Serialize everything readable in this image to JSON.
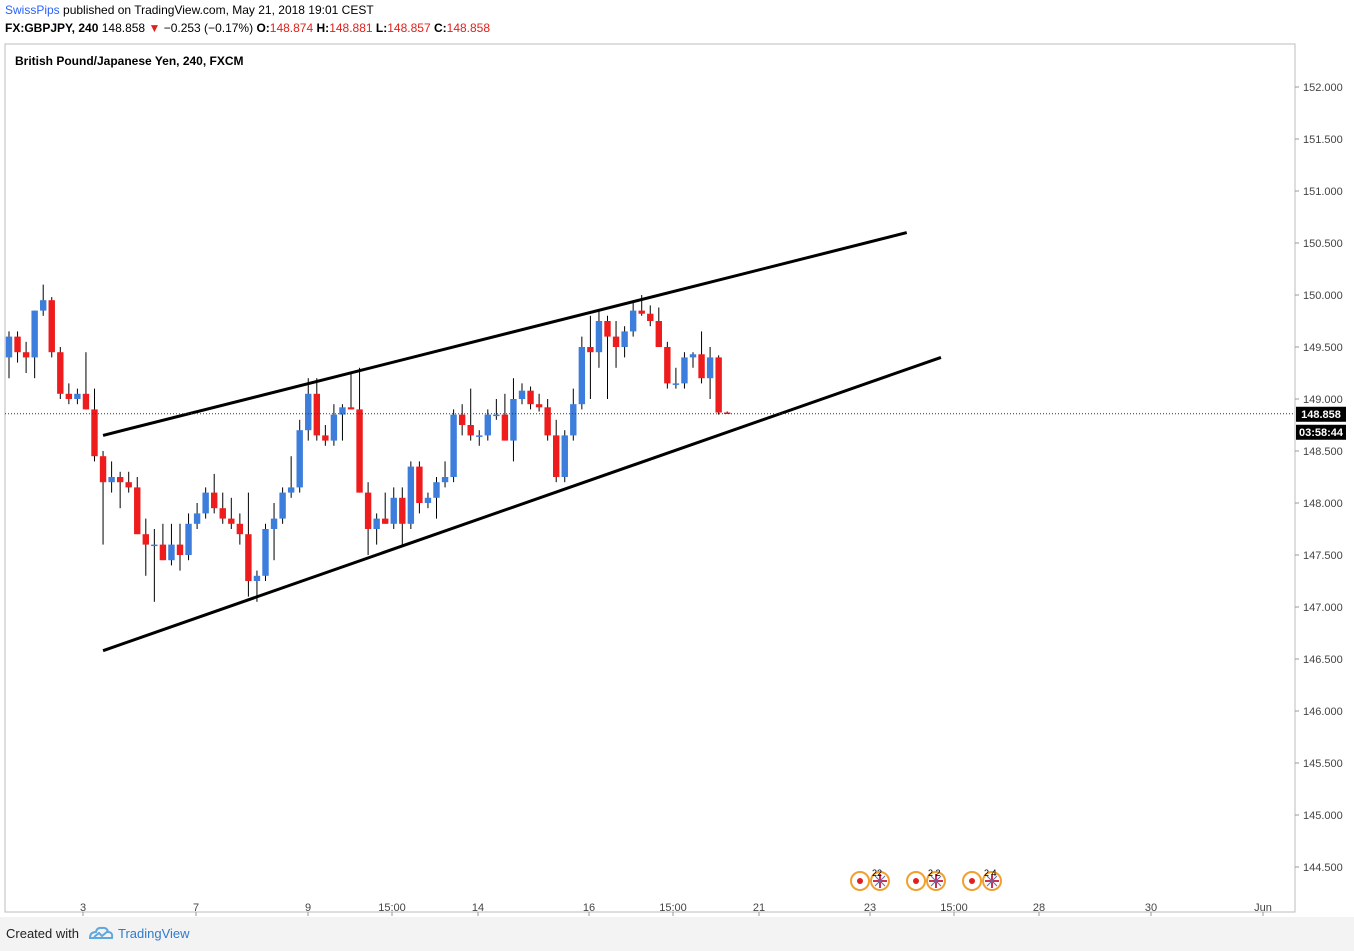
{
  "header": {
    "publisher": "SwissPips",
    "published_text": "published on TradingView.com, May 21, 2018 19:01 CEST",
    "symbol": "FX:GBPJPY, 240",
    "last": "148.858",
    "change_arrow": "▼",
    "change": "−0.253 (−0.17%)",
    "o_label": "O:",
    "o_val": "148.874",
    "h_label": "H:",
    "h_val": "148.881",
    "l_label": "L:",
    "l_val": "148.857",
    "c_label": "C:",
    "c_val": "148.858"
  },
  "legend": {
    "title": "British Pound/Japanese Yen, 240, FXCM"
  },
  "price_axis": {
    "ticks": [
      "152.000",
      "151.500",
      "151.000",
      "150.500",
      "150.000",
      "149.500",
      "149.000",
      "148.500",
      "148.000",
      "147.500",
      "147.000",
      "146.500",
      "146.000",
      "145.500",
      "145.000",
      "144.500"
    ],
    "last_price_label": "148.858",
    "countdown_label": "03:58:44"
  },
  "time_axis": {
    "ticks": [
      "3",
      "7",
      "9",
      "15:00",
      "14",
      "16",
      "15:00",
      "21",
      "23",
      "15:00",
      "28",
      "30",
      "Jun"
    ]
  },
  "events": [
    {
      "count": "22"
    },
    {
      "count": "2 2"
    },
    {
      "count": "2 4"
    }
  ],
  "footer": {
    "created_with": "Created with",
    "brand": "TradingView"
  },
  "colors": {
    "up": "#3d7ddb",
    "down": "#ee1c1c",
    "line": "#000000",
    "link": "#2962ff"
  },
  "chart_data": {
    "type": "candlestick",
    "title": "British Pound/Japanese Yen, 240, FXCM",
    "y_range": [
      144.3,
      152.3
    ],
    "last_price": 148.858,
    "candles": [
      {
        "o": 149.4,
        "h": 149.65,
        "l": 149.2,
        "c": 149.6
      },
      {
        "o": 149.6,
        "h": 149.65,
        "l": 149.35,
        "c": 149.45
      },
      {
        "o": 149.45,
        "h": 149.55,
        "l": 149.25,
        "c": 149.4
      },
      {
        "o": 149.4,
        "h": 149.85,
        "l": 149.2,
        "c": 149.85
      },
      {
        "o": 149.85,
        "h": 150.1,
        "l": 149.8,
        "c": 149.95
      },
      {
        "o": 149.95,
        "h": 149.98,
        "l": 149.4,
        "c": 149.45
      },
      {
        "o": 149.45,
        "h": 149.5,
        "l": 149.0,
        "c": 149.05
      },
      {
        "o": 149.05,
        "h": 149.15,
        "l": 148.95,
        "c": 149.0
      },
      {
        "o": 149.0,
        "h": 149.1,
        "l": 148.95,
        "c": 149.05
      },
      {
        "o": 149.05,
        "h": 149.45,
        "l": 148.9,
        "c": 148.9
      },
      {
        "o": 148.9,
        "h": 149.1,
        "l": 148.4,
        "c": 148.45
      },
      {
        "o": 148.45,
        "h": 148.5,
        "l": 147.6,
        "c": 148.2
      },
      {
        "o": 148.2,
        "h": 148.4,
        "l": 148.1,
        "c": 148.25
      },
      {
        "o": 148.25,
        "h": 148.3,
        "l": 147.95,
        "c": 148.2
      },
      {
        "o": 148.2,
        "h": 148.3,
        "l": 148.1,
        "c": 148.15
      },
      {
        "o": 148.15,
        "h": 148.25,
        "l": 147.7,
        "c": 147.7
      },
      {
        "o": 147.7,
        "h": 147.85,
        "l": 147.3,
        "c": 147.6
      },
      {
        "o": 147.6,
        "h": 147.75,
        "l": 147.05,
        "c": 147.6
      },
      {
        "o": 147.6,
        "h": 147.8,
        "l": 147.45,
        "c": 147.45
      },
      {
        "o": 147.45,
        "h": 147.8,
        "l": 147.4,
        "c": 147.6
      },
      {
        "o": 147.6,
        "h": 147.8,
        "l": 147.35,
        "c": 147.5
      },
      {
        "o": 147.5,
        "h": 147.9,
        "l": 147.45,
        "c": 147.8
      },
      {
        "o": 147.8,
        "h": 148.0,
        "l": 147.75,
        "c": 147.9
      },
      {
        "o": 147.9,
        "h": 148.15,
        "l": 147.85,
        "c": 148.1
      },
      {
        "o": 148.1,
        "h": 148.28,
        "l": 147.9,
        "c": 147.95
      },
      {
        "o": 147.95,
        "h": 148.1,
        "l": 147.8,
        "c": 147.85
      },
      {
        "o": 147.85,
        "h": 148.05,
        "l": 147.75,
        "c": 147.8
      },
      {
        "o": 147.8,
        "h": 147.9,
        "l": 147.6,
        "c": 147.7
      },
      {
        "o": 147.7,
        "h": 148.1,
        "l": 147.1,
        "c": 147.25
      },
      {
        "o": 147.25,
        "h": 147.35,
        "l": 147.05,
        "c": 147.3
      },
      {
        "o": 147.3,
        "h": 147.8,
        "l": 147.25,
        "c": 147.75
      },
      {
        "o": 147.75,
        "h": 148.0,
        "l": 147.45,
        "c": 147.85
      },
      {
        "o": 147.85,
        "h": 148.15,
        "l": 147.8,
        "c": 148.1
      },
      {
        "o": 148.1,
        "h": 148.45,
        "l": 148.05,
        "c": 148.15
      },
      {
        "o": 148.15,
        "h": 148.8,
        "l": 148.1,
        "c": 148.7
      },
      {
        "o": 148.7,
        "h": 149.2,
        "l": 148.6,
        "c": 149.05
      },
      {
        "o": 149.05,
        "h": 149.2,
        "l": 148.6,
        "c": 148.65
      },
      {
        "o": 148.65,
        "h": 148.75,
        "l": 148.55,
        "c": 148.6
      },
      {
        "o": 148.6,
        "h": 148.95,
        "l": 148.55,
        "c": 148.85
      },
      {
        "o": 148.85,
        "h": 148.95,
        "l": 148.6,
        "c": 148.92
      },
      {
        "o": 148.92,
        "h": 149.25,
        "l": 148.9,
        "c": 148.9
      },
      {
        "o": 148.9,
        "h": 149.3,
        "l": 148.1,
        "c": 148.1
      },
      {
        "o": 148.1,
        "h": 148.2,
        "l": 147.5,
        "c": 147.75
      },
      {
        "o": 147.75,
        "h": 147.9,
        "l": 147.6,
        "c": 147.85
      },
      {
        "o": 147.85,
        "h": 148.1,
        "l": 147.8,
        "c": 147.8
      },
      {
        "o": 147.8,
        "h": 148.15,
        "l": 147.75,
        "c": 148.05
      },
      {
        "o": 148.05,
        "h": 148.15,
        "l": 147.6,
        "c": 147.8
      },
      {
        "o": 147.8,
        "h": 148.4,
        "l": 147.75,
        "c": 148.35
      },
      {
        "o": 148.35,
        "h": 148.4,
        "l": 147.9,
        "c": 148.0
      },
      {
        "o": 148.0,
        "h": 148.1,
        "l": 147.95,
        "c": 148.05
      },
      {
        "o": 148.05,
        "h": 148.25,
        "l": 147.85,
        "c": 148.2
      },
      {
        "o": 148.2,
        "h": 148.4,
        "l": 148.15,
        "c": 148.25
      },
      {
        "o": 148.25,
        "h": 148.9,
        "l": 148.2,
        "c": 148.85
      },
      {
        "o": 148.85,
        "h": 148.95,
        "l": 148.65,
        "c": 148.75
      },
      {
        "o": 148.75,
        "h": 149.1,
        "l": 148.6,
        "c": 148.65
      },
      {
        "o": 148.65,
        "h": 148.7,
        "l": 148.55,
        "c": 148.65
      },
      {
        "o": 148.65,
        "h": 148.9,
        "l": 148.6,
        "c": 148.85
      },
      {
        "o": 148.85,
        "h": 149.0,
        "l": 148.8,
        "c": 148.85
      },
      {
        "o": 148.85,
        "h": 149.05,
        "l": 148.6,
        "c": 148.6
      },
      {
        "o": 148.6,
        "h": 149.2,
        "l": 148.4,
        "c": 149.0
      },
      {
        "o": 149.0,
        "h": 149.15,
        "l": 148.95,
        "c": 149.08
      },
      {
        "o": 149.08,
        "h": 149.12,
        "l": 148.9,
        "c": 148.95
      },
      {
        "o": 148.95,
        "h": 149.05,
        "l": 148.88,
        "c": 148.92
      },
      {
        "o": 148.92,
        "h": 149.0,
        "l": 148.6,
        "c": 148.65
      },
      {
        "o": 148.65,
        "h": 148.8,
        "l": 148.2,
        "c": 148.25
      },
      {
        "o": 148.25,
        "h": 148.7,
        "l": 148.2,
        "c": 148.65
      },
      {
        "o": 148.65,
        "h": 149.1,
        "l": 148.6,
        "c": 148.95
      },
      {
        "o": 148.95,
        "h": 149.6,
        "l": 148.9,
        "c": 149.5
      },
      {
        "o": 149.5,
        "h": 149.8,
        "l": 149.0,
        "c": 149.45
      },
      {
        "o": 149.45,
        "h": 149.85,
        "l": 149.3,
        "c": 149.75
      },
      {
        "o": 149.75,
        "h": 149.8,
        "l": 149.0,
        "c": 149.6
      },
      {
        "o": 149.6,
        "h": 149.75,
        "l": 149.3,
        "c": 149.5
      },
      {
        "o": 149.5,
        "h": 149.7,
        "l": 149.4,
        "c": 149.65
      },
      {
        "o": 149.65,
        "h": 149.95,
        "l": 149.6,
        "c": 149.85
      },
      {
        "o": 149.85,
        "h": 150.0,
        "l": 149.8,
        "c": 149.82
      },
      {
        "o": 149.82,
        "h": 149.9,
        "l": 149.7,
        "c": 149.75
      },
      {
        "o": 149.75,
        "h": 149.88,
        "l": 149.5,
        "c": 149.5
      },
      {
        "o": 149.5,
        "h": 149.55,
        "l": 149.1,
        "c": 149.15
      },
      {
        "o": 149.15,
        "h": 149.3,
        "l": 149.1,
        "c": 149.15
      },
      {
        "o": 149.15,
        "h": 149.45,
        "l": 149.1,
        "c": 149.4
      },
      {
        "o": 149.4,
        "h": 149.45,
        "l": 149.3,
        "c": 149.43
      },
      {
        "o": 149.43,
        "h": 149.65,
        "l": 149.15,
        "c": 149.2
      },
      {
        "o": 149.2,
        "h": 149.5,
        "l": 149.0,
        "c": 149.4
      },
      {
        "o": 149.4,
        "h": 149.42,
        "l": 148.85,
        "c": 148.87
      },
      {
        "o": 148.87,
        "h": 148.88,
        "l": 148.86,
        "c": 148.858
      }
    ],
    "trendlines": [
      {
        "name": "channel-upper",
        "t1": 11,
        "p1": 148.65,
        "t2": 105,
        "p2": 150.6
      },
      {
        "name": "channel-lower",
        "t1": 11,
        "p1": 146.58,
        "t2": 109,
        "p2": 149.4
      }
    ]
  }
}
